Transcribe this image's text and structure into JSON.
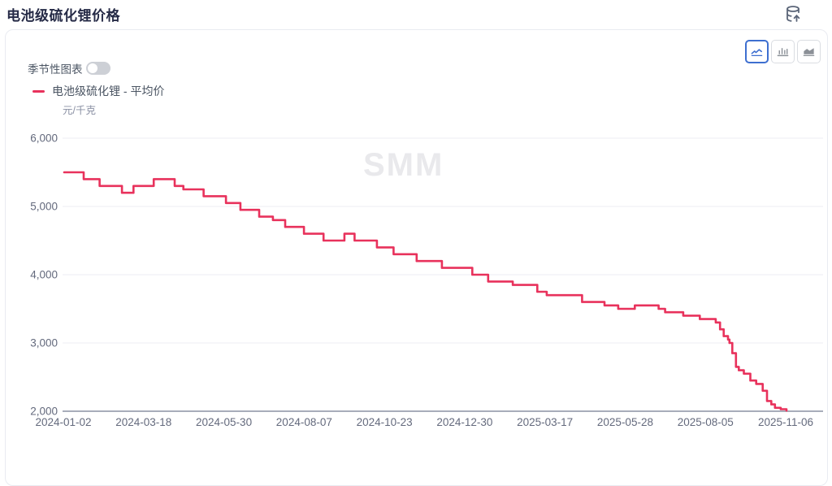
{
  "page": {
    "title": "电池级硫化锂价格"
  },
  "header": {
    "icon": "database-upload-icon"
  },
  "controls": {
    "seasonal_toggle_label": "季节性图表",
    "seasonal_toggle_state": "off",
    "chart_type_buttons": [
      {
        "icon": "line-chart-icon",
        "active": true
      },
      {
        "icon": "bar-chart-icon",
        "active": false
      },
      {
        "icon": "area-chart-icon",
        "active": false
      }
    ]
  },
  "legend": {
    "series_label": "电池级硫化锂 - 平均价",
    "series_color": "#e8325c"
  },
  "watermark": "SMM",
  "colors": {
    "line": "#e8325c",
    "grid": "#ededf3",
    "axis": "#8b92a3",
    "tick_text": "#646a7d",
    "active_button": "#3e6fd0"
  },
  "chart_data": {
    "type": "line",
    "style": "step-after",
    "title": "电池级硫化锂价格",
    "ylabel_unit": "元/千克",
    "y_range": [
      2000,
      6000
    ],
    "y_ticks": [
      6000,
      5000,
      4000,
      3000,
      2000
    ],
    "grid": "horizontal",
    "legend_position": "top-left",
    "x_ticks": [
      "2024-01-02",
      "2024-03-18",
      "2024-05-30",
      "2024-08-07",
      "2024-10-23",
      "2024-12-30",
      "2025-03-17",
      "2025-05-28",
      "2025-08-05",
      "2025-11-06"
    ],
    "series": [
      {
        "name": "电池级硫化锂 - 平均价",
        "color": "#e8325c",
        "points": [
          [
            0.0,
            5500
          ],
          [
            0.027,
            5400
          ],
          [
            0.049,
            5300
          ],
          [
            0.08,
            5200
          ],
          [
            0.096,
            5300
          ],
          [
            0.124,
            5400
          ],
          [
            0.153,
            5300
          ],
          [
            0.165,
            5250
          ],
          [
            0.193,
            5150
          ],
          [
            0.224,
            5050
          ],
          [
            0.244,
            4950
          ],
          [
            0.27,
            4850
          ],
          [
            0.289,
            4800
          ],
          [
            0.306,
            4700
          ],
          [
            0.332,
            4600
          ],
          [
            0.359,
            4500
          ],
          [
            0.388,
            4600
          ],
          [
            0.402,
            4500
          ],
          [
            0.433,
            4400
          ],
          [
            0.456,
            4300
          ],
          [
            0.488,
            4200
          ],
          [
            0.523,
            4100
          ],
          [
            0.565,
            4000
          ],
          [
            0.587,
            3900
          ],
          [
            0.621,
            3850
          ],
          [
            0.655,
            3750
          ],
          [
            0.668,
            3700
          ],
          [
            0.717,
            3600
          ],
          [
            0.748,
            3550
          ],
          [
            0.767,
            3500
          ],
          [
            0.79,
            3550
          ],
          [
            0.823,
            3500
          ],
          [
            0.832,
            3450
          ],
          [
            0.857,
            3400
          ],
          [
            0.88,
            3350
          ],
          [
            0.902,
            3300
          ],
          [
            0.908,
            3200
          ],
          [
            0.913,
            3100
          ],
          [
            0.919,
            3050
          ],
          [
            0.921,
            3000
          ],
          [
            0.925,
            2850
          ],
          [
            0.93,
            2650
          ],
          [
            0.934,
            2600
          ],
          [
            0.941,
            2550
          ],
          [
            0.95,
            2450
          ],
          [
            0.958,
            2400
          ],
          [
            0.967,
            2300
          ],
          [
            0.973,
            2150
          ],
          [
            0.979,
            2100
          ],
          [
            0.984,
            2050
          ],
          [
            0.992,
            2030
          ],
          [
            1.0,
            2010
          ]
        ]
      }
    ]
  }
}
